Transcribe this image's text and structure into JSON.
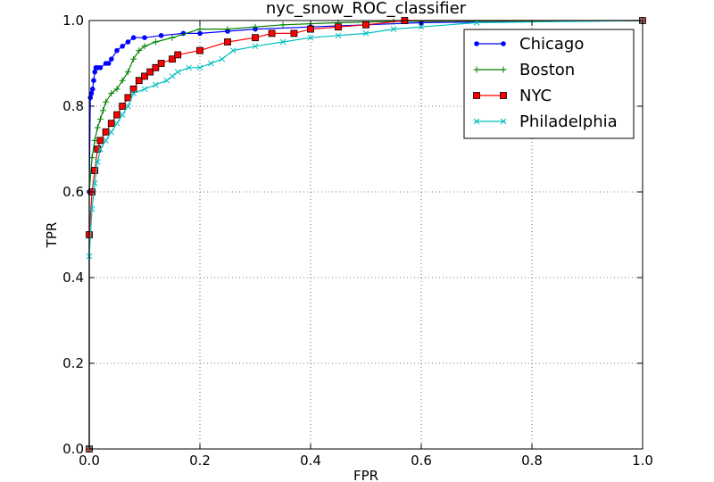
{
  "chart_data": {
    "type": "line",
    "title": "nyc_snow_ROC_classifier",
    "xlabel": "FPR",
    "ylabel": "TPR",
    "xlim": [
      0.0,
      1.0
    ],
    "ylim": [
      0.0,
      1.0
    ],
    "xticks": [
      "0.0",
      "0.2",
      "0.4",
      "0.6",
      "0.8",
      "1.0"
    ],
    "yticks": [
      "0.0",
      "0.2",
      "0.4",
      "0.6",
      "0.8",
      "1.0"
    ],
    "grid": true,
    "legend_position": "top-right",
    "series": [
      {
        "name": "Chicago",
        "color": "#0000ff",
        "marker": "dot",
        "x": [
          0.0,
          0.0,
          0.002,
          0.004,
          0.006,
          0.008,
          0.01,
          0.012,
          0.015,
          0.02,
          0.03,
          0.035,
          0.04,
          0.05,
          0.06,
          0.07,
          0.08,
          0.1,
          0.13,
          0.17,
          0.2,
          0.25,
          0.3,
          0.4,
          0.5,
          0.6,
          1.0
        ],
        "y": [
          0.0,
          0.6,
          0.82,
          0.83,
          0.84,
          0.86,
          0.88,
          0.89,
          0.89,
          0.89,
          0.9,
          0.9,
          0.91,
          0.93,
          0.94,
          0.95,
          0.96,
          0.96,
          0.965,
          0.97,
          0.97,
          0.975,
          0.98,
          0.985,
          0.99,
          0.995,
          1.0
        ]
      },
      {
        "name": "Boston",
        "color": "#008000",
        "marker": "plus",
        "x": [
          0.0,
          0.0,
          0.005,
          0.01,
          0.015,
          0.02,
          0.025,
          0.03,
          0.04,
          0.05,
          0.06,
          0.07,
          0.08,
          0.09,
          0.1,
          0.12,
          0.15,
          0.2,
          0.25,
          0.3,
          0.35,
          0.45,
          0.55,
          1.0
        ],
        "y": [
          0.0,
          0.6,
          0.68,
          0.72,
          0.75,
          0.77,
          0.79,
          0.81,
          0.83,
          0.84,
          0.86,
          0.88,
          0.91,
          0.93,
          0.94,
          0.95,
          0.96,
          0.98,
          0.98,
          0.985,
          0.99,
          0.995,
          0.998,
          1.0
        ]
      },
      {
        "name": "NYC",
        "color": "#ff0000",
        "marker": "square",
        "x": [
          0.0,
          0.0,
          0.005,
          0.01,
          0.015,
          0.02,
          0.03,
          0.04,
          0.05,
          0.06,
          0.07,
          0.08,
          0.09,
          0.1,
          0.11,
          0.12,
          0.13,
          0.15,
          0.16,
          0.2,
          0.25,
          0.3,
          0.33,
          0.37,
          0.4,
          0.45,
          0.5,
          0.57,
          1.0
        ],
        "y": [
          0.0,
          0.5,
          0.6,
          0.65,
          0.7,
          0.72,
          0.74,
          0.76,
          0.78,
          0.8,
          0.82,
          0.84,
          0.86,
          0.87,
          0.88,
          0.89,
          0.9,
          0.91,
          0.92,
          0.93,
          0.95,
          0.96,
          0.97,
          0.97,
          0.98,
          0.985,
          0.99,
          1.0,
          1.0
        ]
      },
      {
        "name": "Philadelphia",
        "color": "#00bfbf",
        "marker": "x",
        "x": [
          0.0,
          0.0,
          0.005,
          0.01,
          0.015,
          0.02,
          0.03,
          0.04,
          0.05,
          0.06,
          0.07,
          0.08,
          0.1,
          0.12,
          0.14,
          0.15,
          0.16,
          0.18,
          0.2,
          0.22,
          0.24,
          0.26,
          0.3,
          0.35,
          0.4,
          0.45,
          0.5,
          0.55,
          0.6,
          0.7,
          1.0
        ],
        "y": [
          0.0,
          0.45,
          0.56,
          0.62,
          0.67,
          0.7,
          0.72,
          0.74,
          0.76,
          0.78,
          0.8,
          0.83,
          0.84,
          0.85,
          0.86,
          0.87,
          0.88,
          0.89,
          0.89,
          0.9,
          0.91,
          0.93,
          0.94,
          0.95,
          0.96,
          0.965,
          0.97,
          0.98,
          0.985,
          0.995,
          1.0
        ]
      }
    ]
  }
}
